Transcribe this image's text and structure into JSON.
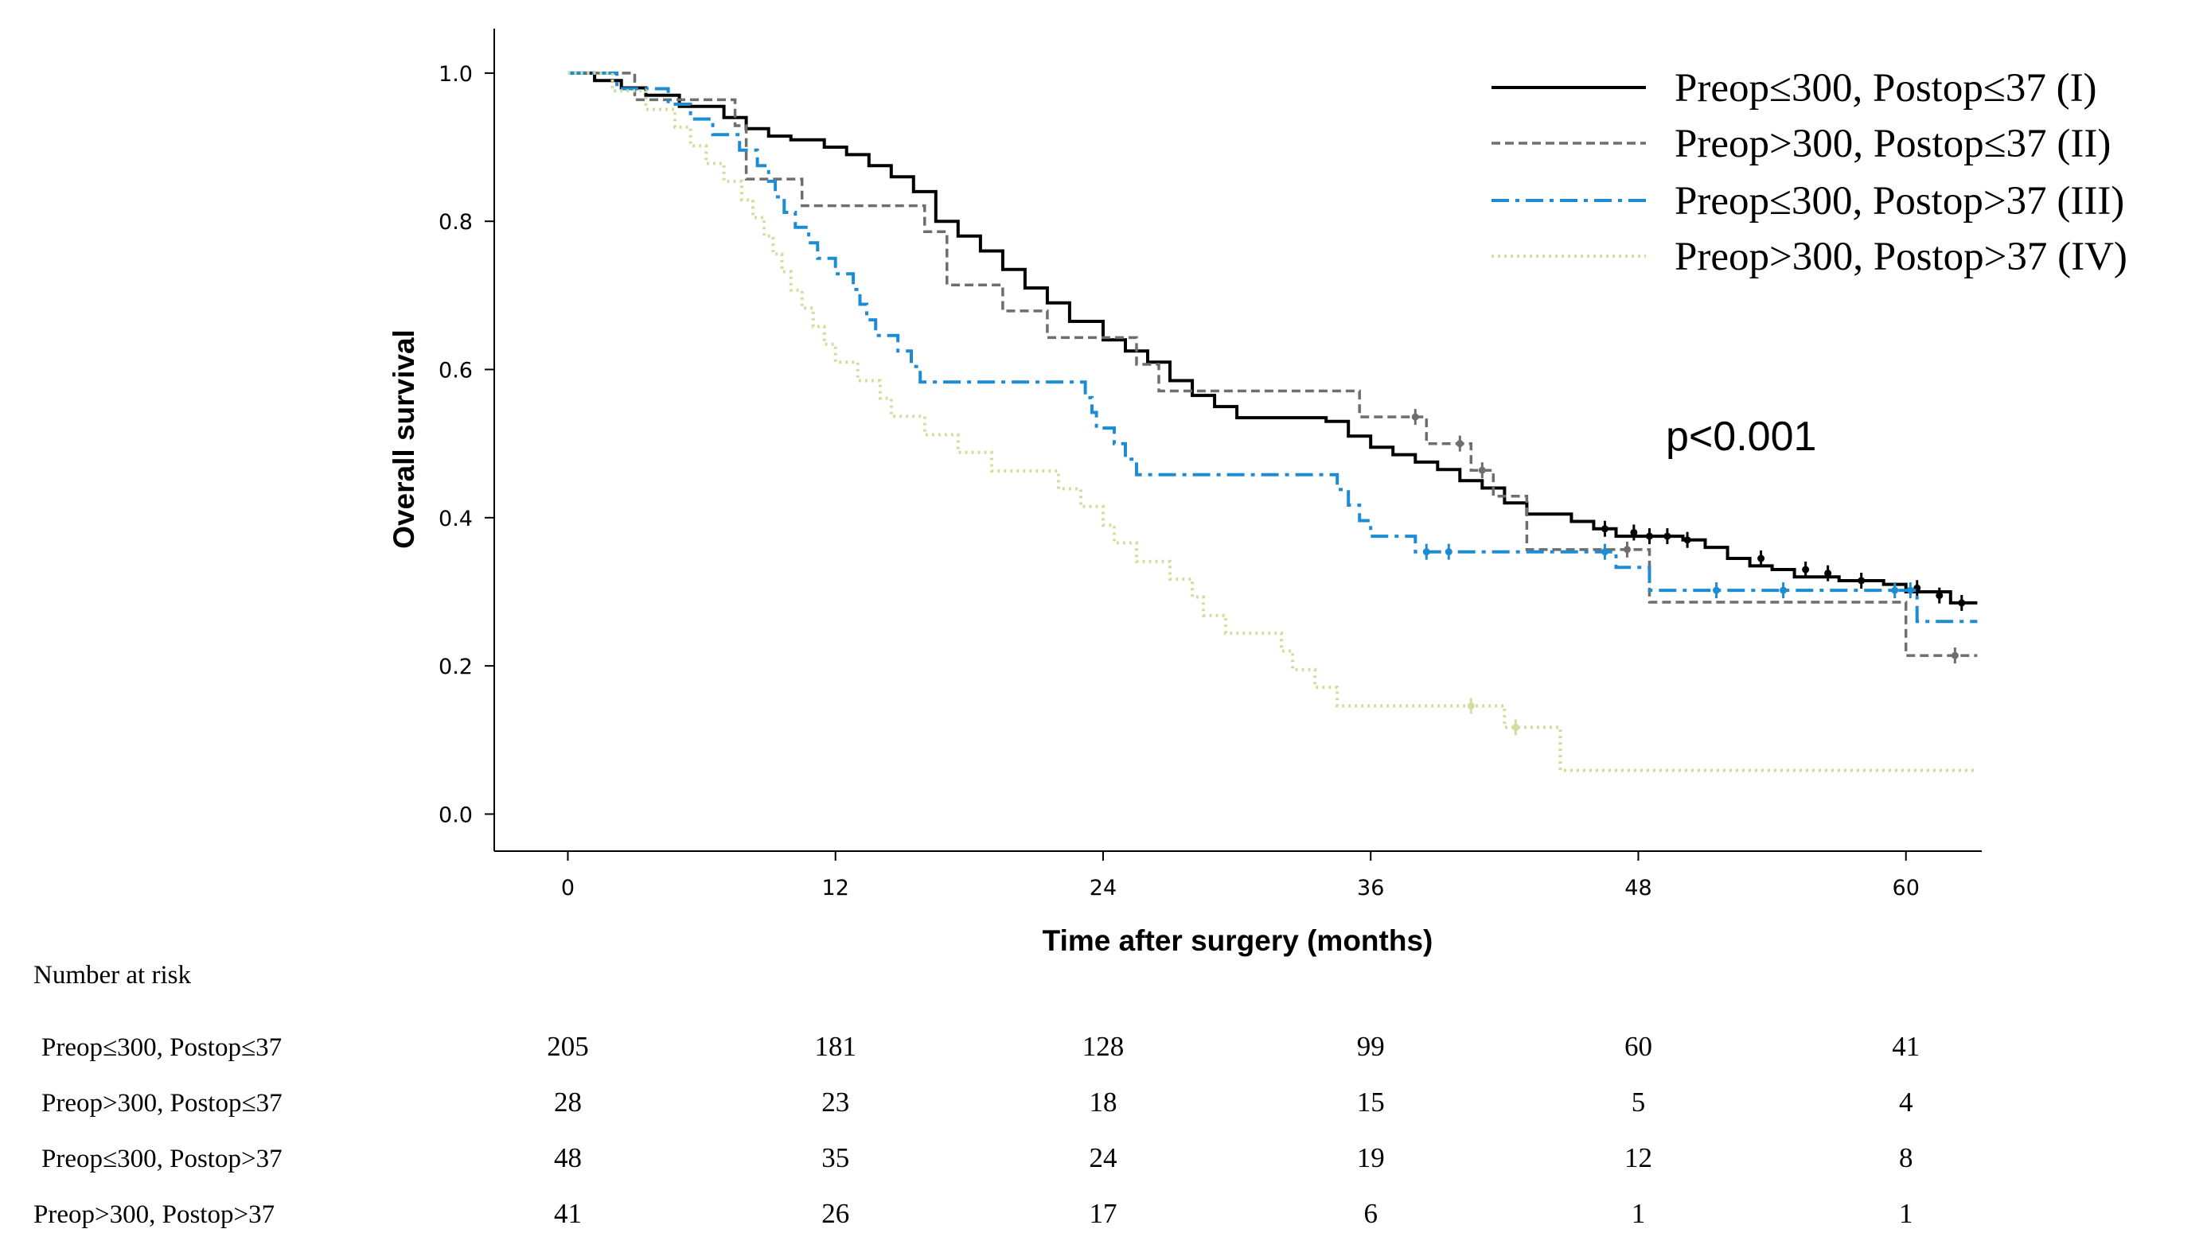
{
  "chart_data": {
    "type": "line",
    "subtype": "kaplan-meier",
    "title": "",
    "xlabel": "Time after surgery (months)",
    "ylabel": "Overall survival",
    "xlim": [
      -3.3,
      63.4
    ],
    "ylim": [
      -0.05,
      1.06
    ],
    "xticks": [
      0,
      12,
      24,
      36,
      48,
      60
    ],
    "xtick_labels": [
      "0",
      "12",
      "24",
      "36",
      "48",
      "60"
    ],
    "yticks": [
      0.0,
      0.2,
      0.4,
      0.6,
      0.8,
      1.0
    ],
    "ytick_labels": [
      "0.0",
      "0.2",
      "0.4",
      "0.6",
      "0.8",
      "1.0"
    ],
    "grid": false,
    "legend_position": "top-right",
    "annotation": "p<0.001",
    "series": [
      {
        "name": "Preop≤300, Postop≤37 (I)",
        "color": "#000000",
        "style": "solid",
        "points": [
          [
            0,
            1.0
          ],
          [
            1.2,
            0.99
          ],
          [
            2.4,
            0.98
          ],
          [
            3.5,
            0.97
          ],
          [
            5,
            0.955
          ],
          [
            7,
            0.94
          ],
          [
            8,
            0.925
          ],
          [
            9,
            0.915
          ],
          [
            10,
            0.91
          ],
          [
            11.5,
            0.9
          ],
          [
            12.5,
            0.89
          ],
          [
            13.5,
            0.875
          ],
          [
            14.5,
            0.86
          ],
          [
            15.5,
            0.84
          ],
          [
            16.5,
            0.8
          ],
          [
            17.5,
            0.78
          ],
          [
            18.5,
            0.76
          ],
          [
            19.5,
            0.735
          ],
          [
            20.5,
            0.71
          ],
          [
            21.5,
            0.69
          ],
          [
            22.5,
            0.665
          ],
          [
            24,
            0.64
          ],
          [
            25,
            0.625
          ],
          [
            26,
            0.61
          ],
          [
            27,
            0.585
          ],
          [
            28,
            0.565
          ],
          [
            29,
            0.55
          ],
          [
            30,
            0.535
          ],
          [
            33,
            0.535
          ],
          [
            34,
            0.53
          ],
          [
            35,
            0.51
          ],
          [
            36,
            0.495
          ],
          [
            37,
            0.485
          ],
          [
            38,
            0.475
          ],
          [
            39,
            0.465
          ],
          [
            40,
            0.45
          ],
          [
            41,
            0.44
          ],
          [
            42,
            0.42
          ],
          [
            43,
            0.405
          ],
          [
            45,
            0.395
          ],
          [
            46,
            0.385
          ],
          [
            47,
            0.375
          ],
          [
            50,
            0.37
          ],
          [
            51,
            0.36
          ],
          [
            52,
            0.345
          ],
          [
            53,
            0.335
          ],
          [
            54,
            0.33
          ],
          [
            55,
            0.32
          ],
          [
            57,
            0.315
          ],
          [
            59,
            0.31
          ],
          [
            60,
            0.3
          ],
          [
            62,
            0.285
          ],
          [
            63.2,
            0.285
          ]
        ],
        "censored": [
          [
            46.5,
            0.385
          ],
          [
            47.8,
            0.38
          ],
          [
            48.5,
            0.375
          ],
          [
            49.3,
            0.375
          ],
          [
            50.2,
            0.37
          ],
          [
            53.5,
            0.345
          ],
          [
            55.5,
            0.33
          ],
          [
            56.5,
            0.325
          ],
          [
            58,
            0.315
          ],
          [
            60.5,
            0.305
          ],
          [
            61.5,
            0.295
          ],
          [
            62.5,
            0.285
          ]
        ]
      },
      {
        "name": "Preop>300, Postop≤37 (II)",
        "color": "#6e6e6e",
        "style": "dashed",
        "points": [
          [
            0,
            1.0
          ],
          [
            3,
            0.964
          ],
          [
            7.5,
            0.929
          ],
          [
            8,
            0.857
          ],
          [
            10.5,
            0.821
          ],
          [
            16,
            0.786
          ],
          [
            17,
            0.714
          ],
          [
            19.5,
            0.679
          ],
          [
            21.5,
            0.643
          ],
          [
            25.5,
            0.607
          ],
          [
            26.5,
            0.571
          ],
          [
            35.5,
            0.536
          ],
          [
            38.5,
            0.5
          ],
          [
            40.5,
            0.464
          ],
          [
            41.5,
            0.429
          ],
          [
            43,
            0.357
          ],
          [
            48.5,
            0.286
          ],
          [
            60,
            0.214
          ],
          [
            63.2,
            0.214
          ]
        ],
        "censored": [
          [
            38,
            0.536
          ],
          [
            40,
            0.5
          ],
          [
            41,
            0.464
          ],
          [
            47.5,
            0.357
          ],
          [
            62.2,
            0.214
          ]
        ]
      },
      {
        "name": "Preop≤300, Postop>37 (III)",
        "color": "#1e8cd2",
        "style": "dashdot",
        "points": [
          [
            0,
            1.0
          ],
          [
            2.2,
            0.979
          ],
          [
            4.5,
            0.958
          ],
          [
            5.5,
            0.938
          ],
          [
            6.5,
            0.917
          ],
          [
            7.7,
            0.896
          ],
          [
            8.5,
            0.875
          ],
          [
            9,
            0.854
          ],
          [
            9.3,
            0.833
          ],
          [
            9.7,
            0.812
          ],
          [
            10.2,
            0.792
          ],
          [
            10.8,
            0.771
          ],
          [
            11.2,
            0.75
          ],
          [
            12,
            0.729
          ],
          [
            12.8,
            0.708
          ],
          [
            13.1,
            0.688
          ],
          [
            13.4,
            0.667
          ],
          [
            13.8,
            0.646
          ],
          [
            14.8,
            0.625
          ],
          [
            15.4,
            0.604
          ],
          [
            15.8,
            0.583
          ],
          [
            23.2,
            0.562
          ],
          [
            23.5,
            0.542
          ],
          [
            23.7,
            0.521
          ],
          [
            24.5,
            0.5
          ],
          [
            25,
            0.479
          ],
          [
            25.5,
            0.458
          ],
          [
            34.5,
            0.438
          ],
          [
            35,
            0.417
          ],
          [
            35.5,
            0.396
          ],
          [
            36,
            0.375
          ],
          [
            38,
            0.354
          ],
          [
            47,
            0.333
          ],
          [
            48.5,
            0.302
          ],
          [
            60.5,
            0.26
          ],
          [
            63.2,
            0.26
          ]
        ],
        "censored": [
          [
            38.5,
            0.354
          ],
          [
            39.5,
            0.354
          ],
          [
            46.5,
            0.354
          ],
          [
            51.5,
            0.302
          ],
          [
            54.5,
            0.302
          ],
          [
            59.5,
            0.302
          ],
          [
            60.2,
            0.302
          ]
        ]
      },
      {
        "name": "Preop>300, Postop>37 (IV)",
        "color": "#d4dca0",
        "style": "dotted",
        "points": [
          [
            0,
            1.0
          ],
          [
            2,
            0.976
          ],
          [
            3.5,
            0.951
          ],
          [
            4.8,
            0.927
          ],
          [
            5.5,
            0.902
          ],
          [
            6.2,
            0.878
          ],
          [
            7,
            0.854
          ],
          [
            7.8,
            0.829
          ],
          [
            8.3,
            0.805
          ],
          [
            8.8,
            0.78
          ],
          [
            9.2,
            0.756
          ],
          [
            9.6,
            0.732
          ],
          [
            10,
            0.707
          ],
          [
            10.5,
            0.683
          ],
          [
            11,
            0.658
          ],
          [
            11.5,
            0.634
          ],
          [
            12,
            0.61
          ],
          [
            13,
            0.585
          ],
          [
            14,
            0.561
          ],
          [
            14.5,
            0.537
          ],
          [
            16,
            0.512
          ],
          [
            17.5,
            0.488
          ],
          [
            19,
            0.463
          ],
          [
            22,
            0.439
          ],
          [
            23,
            0.415
          ],
          [
            24,
            0.39
          ],
          [
            24.5,
            0.366
          ],
          [
            25.5,
            0.341
          ],
          [
            27,
            0.317
          ],
          [
            28,
            0.293
          ],
          [
            28.5,
            0.268
          ],
          [
            29.5,
            0.244
          ],
          [
            32,
            0.22
          ],
          [
            32.5,
            0.195
          ],
          [
            33.5,
            0.171
          ],
          [
            34.5,
            0.146
          ],
          [
            42,
            0.117
          ],
          [
            44.5,
            0.059
          ],
          [
            63.2,
            0.059
          ]
        ],
        "censored": [
          [
            40.5,
            0.146
          ],
          [
            42.5,
            0.117
          ]
        ]
      }
    ],
    "risk_table": {
      "title": "Number at risk",
      "rows": [
        {
          "label": "Preop≤300, Postop≤37",
          "values": [
            "205",
            "181",
            "128",
            "99",
            "60",
            "41"
          ]
        },
        {
          "label": "Preop>300, Postop≤37",
          "values": [
            "28",
            "23",
            "18",
            "15",
            "5",
            "4"
          ]
        },
        {
          "label": "Preop≤300, Postop>37",
          "values": [
            "48",
            "35",
            "24",
            "19",
            "12",
            "8"
          ]
        },
        {
          "label": "Preop>300, Postop>37",
          "values": [
            "41",
            "26",
            "17",
            "6",
            "1",
            "1"
          ]
        }
      ]
    }
  }
}
